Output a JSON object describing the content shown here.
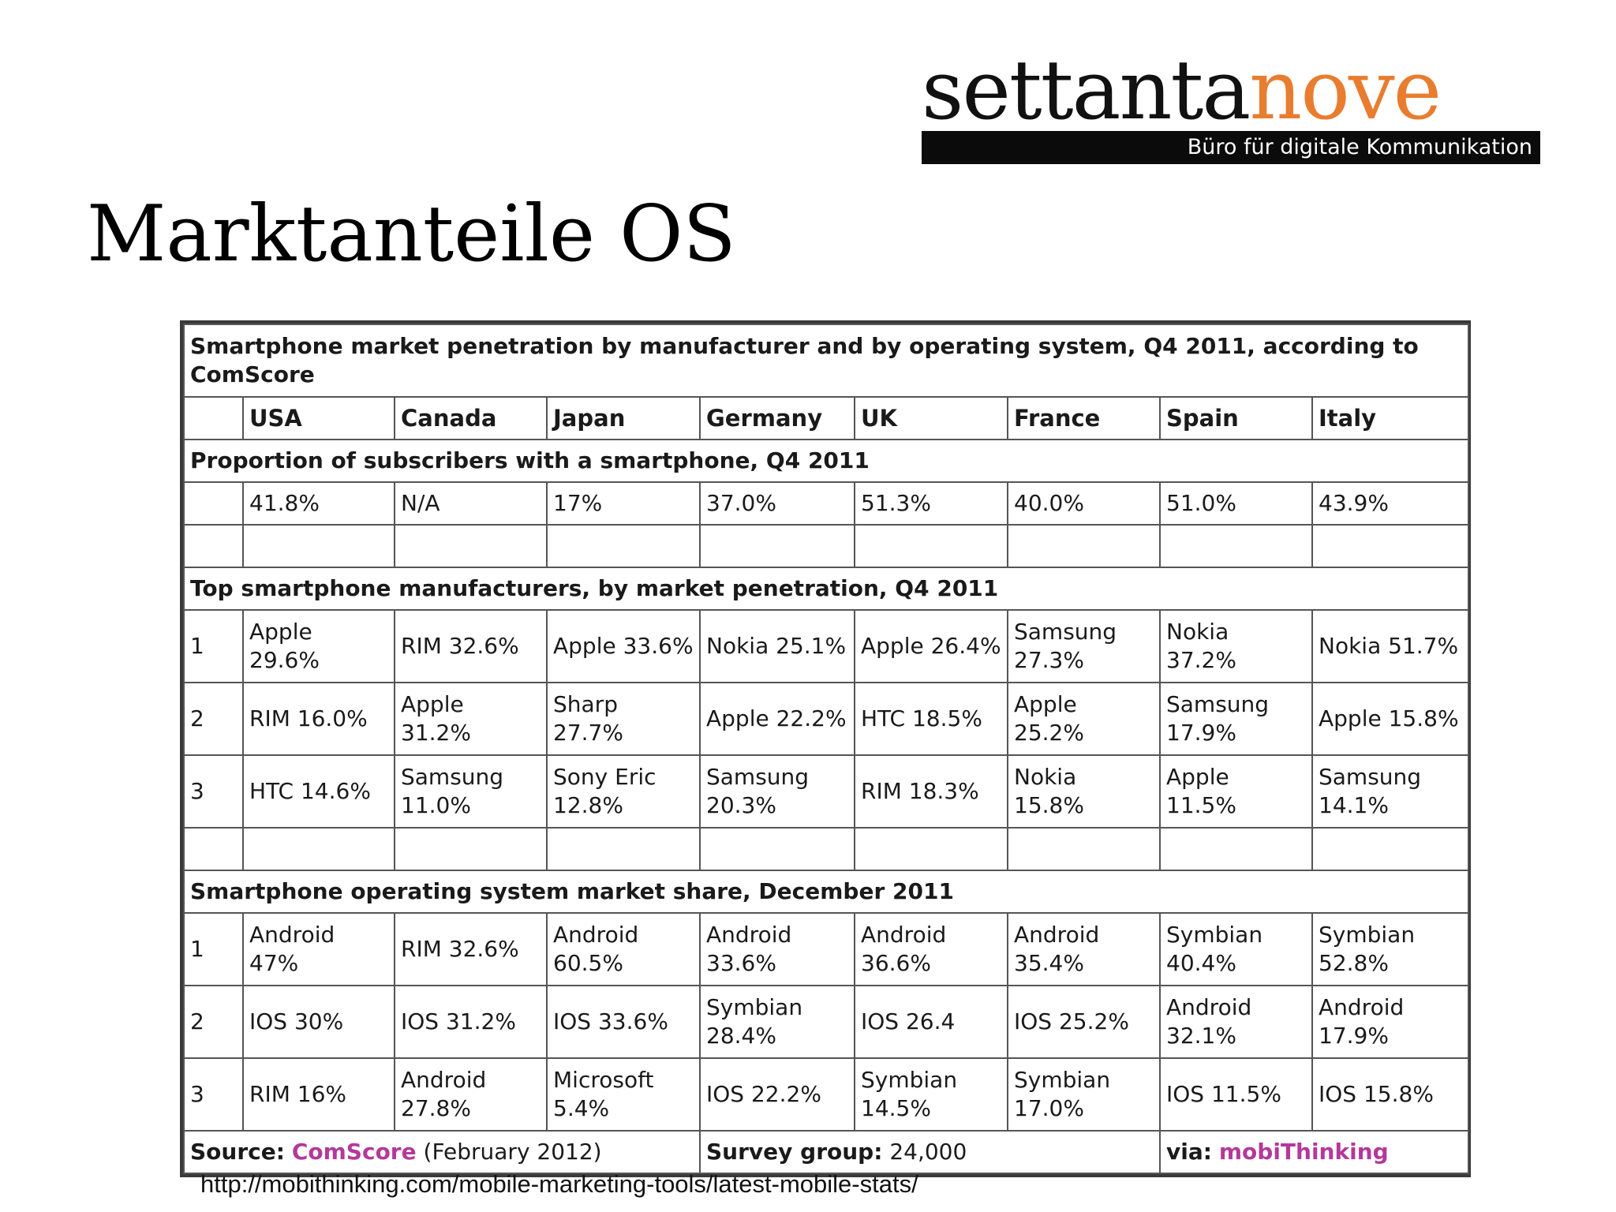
{
  "brand": {
    "word_main": "settanta",
    "word_accent": "nove",
    "tagline": "Büro für digitale Kommunikation",
    "accent_color": "#e87d2f"
  },
  "slide": {
    "title": "Marktanteile OS"
  },
  "table": {
    "title": "Smartphone market penetration by manufacturer and by operating system, Q4 2011, according to ComScore",
    "countries": [
      "USA",
      "Canada",
      "Japan",
      "Germany",
      "UK",
      "France",
      "Spain",
      "Italy"
    ],
    "sections": [
      {
        "heading": "Proportion of subscribers with a smartphone, Q4 2011",
        "rows": [
          {
            "rank": "",
            "cells": [
              "41.8%",
              "N/A",
              "17%",
              "37.0%",
              "51.3%",
              "40.0%",
              "51.0%",
              "43.9%"
            ]
          }
        ]
      },
      {
        "heading": "Top smartphone manufacturers, by market penetration, Q4 2011",
        "rows": [
          {
            "rank": "1",
            "cells": [
              "Apple 29.6%",
              "RIM 32.6%",
              "Apple 33.6%",
              "Nokia 25.1%",
              "Apple 26.4%",
              "Samsung 27.3%",
              "Nokia 37.2%",
              "Nokia 51.7%"
            ]
          },
          {
            "rank": "2",
            "cells": [
              "RIM 16.0%",
              "Apple 31.2%",
              "Sharp 27.7%",
              "Apple 22.2%",
              "HTC 18.5%",
              "Apple 25.2%",
              "Samsung 17.9%",
              "Apple 15.8%"
            ]
          },
          {
            "rank": "3",
            "cells": [
              "HTC 14.6%",
              "Samsung 11.0%",
              "Sony Eric 12.8%",
              "Samsung 20.3%",
              "RIM 18.3%",
              "Nokia 15.8%",
              "Apple 11.5%",
              "Samsung 14.1%"
            ]
          }
        ]
      },
      {
        "heading": "Smartphone operating system market share, December 2011",
        "rows": [
          {
            "rank": "1",
            "cells": [
              "Android 47%",
              "RIM 32.6%",
              "Android 60.5%",
              "Android 33.6%",
              "Android 36.6%",
              "Android 35.4%",
              "Symbian 40.4%",
              "Symbian 52.8%"
            ]
          },
          {
            "rank": "2",
            "cells": [
              "IOS 30%",
              "IOS 31.2%",
              "IOS 33.6%",
              "Symbian 28.4%",
              "IOS 26.4",
              "IOS 25.2%",
              "Android 32.1%",
              "Android 17.9%"
            ]
          },
          {
            "rank": "3",
            "cells": [
              "RIM 16%",
              "Android 27.8%",
              "Microsoft 5.4%",
              "IOS 22.2%",
              "Symbian 14.5%",
              "Symbian 17.0%",
              "IOS 11.5%",
              "IOS 15.8%"
            ]
          }
        ]
      }
    ],
    "footer": {
      "source_label": "Source:",
      "source_link": "ComScore",
      "source_date": "(February 2012)",
      "survey_label": "Survey group:",
      "survey_value": "24,000",
      "via_label": "via:",
      "via_link": "mobiThinking"
    }
  },
  "source_url": "http://mobithinking.com/mobile-marketing-tools/latest-mobile-stats/"
}
